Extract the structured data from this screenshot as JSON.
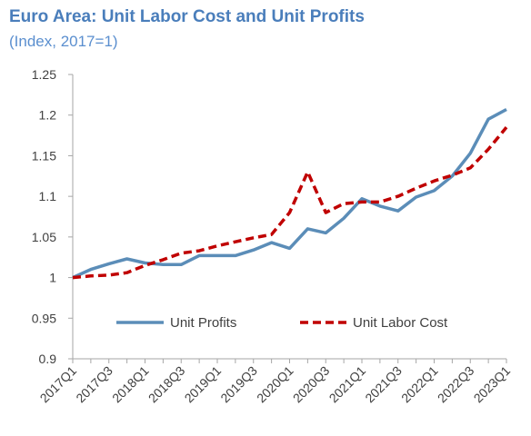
{
  "chart_data": {
    "type": "line",
    "title": "Euro Area: Unit Labor Cost and Unit Profits",
    "subtitle": "(Index, 2017=1)",
    "xlabel": "",
    "ylabel": "",
    "ylim": [
      0.9,
      1.25
    ],
    "yticks": [
      "0.9",
      "0.95",
      "1",
      "1.05",
      "1.1",
      "1.15",
      "1.2",
      "1.25"
    ],
    "xtick_labels": [
      "2017Q1",
      "2017Q3",
      "2018Q1",
      "2018Q3",
      "2019Q1",
      "2019Q3",
      "2020Q1",
      "2020Q3",
      "2021Q1",
      "2021Q3",
      "2022Q1",
      "2022Q3",
      "2023Q1"
    ],
    "x": [
      "2017Q1",
      "2017Q2",
      "2017Q3",
      "2017Q4",
      "2018Q1",
      "2018Q2",
      "2018Q3",
      "2018Q4",
      "2019Q1",
      "2019Q2",
      "2019Q3",
      "2019Q4",
      "2020Q1",
      "2020Q2",
      "2020Q3",
      "2020Q4",
      "2021Q1",
      "2021Q2",
      "2021Q3",
      "2021Q4",
      "2022Q1",
      "2022Q2",
      "2022Q3",
      "2022Q4",
      "2023Q1"
    ],
    "series": [
      {
        "name": "Unit Profits",
        "color": "#5b8db8",
        "style": "solid",
        "values": [
          1.0,
          1.01,
          1.017,
          1.023,
          1.018,
          1.016,
          1.016,
          1.027,
          1.027,
          1.027,
          1.034,
          1.043,
          1.036,
          1.06,
          1.055,
          1.073,
          1.097,
          1.088,
          1.082,
          1.099,
          1.107,
          1.125,
          1.153,
          1.195,
          1.207
        ]
      },
      {
        "name": "Unit Labor Cost",
        "color": "#c00000",
        "style": "dashed",
        "values": [
          1.0,
          1.002,
          1.003,
          1.006,
          1.015,
          1.022,
          1.03,
          1.033,
          1.039,
          1.044,
          1.049,
          1.053,
          1.08,
          1.13,
          1.08,
          1.091,
          1.093,
          1.093,
          1.1,
          1.11,
          1.119,
          1.126,
          1.135,
          1.158,
          1.185
        ]
      }
    ],
    "legend_position": "bottom-inside",
    "grid": false
  }
}
